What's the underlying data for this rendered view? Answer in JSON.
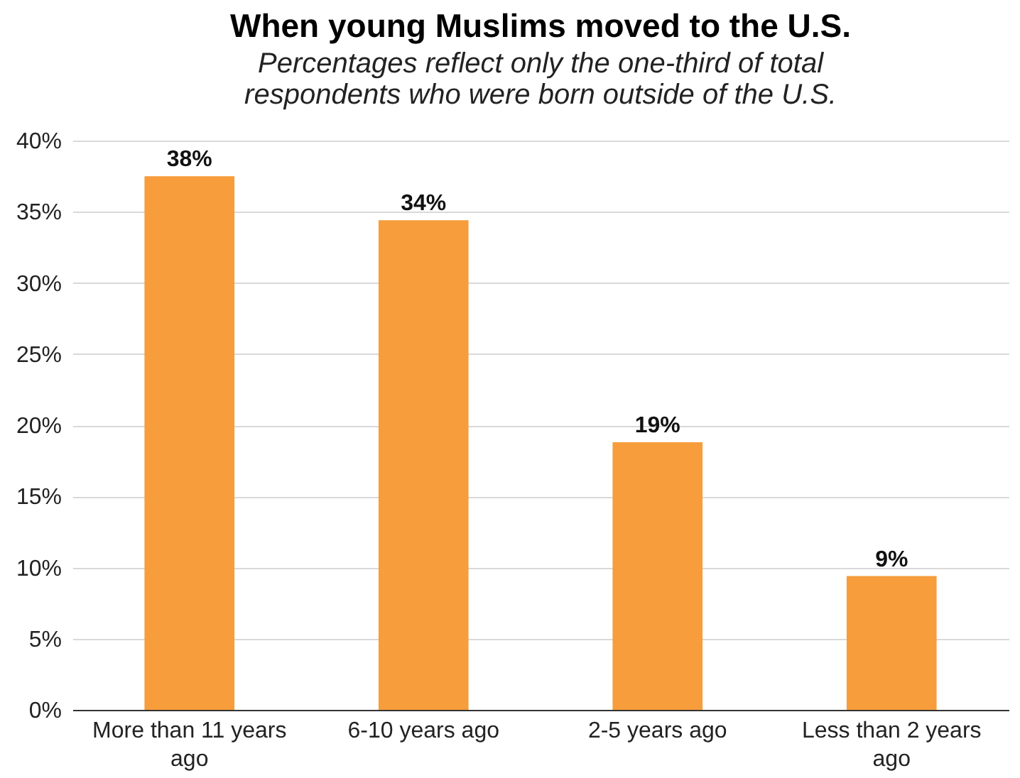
{
  "chart_data": {
    "type": "bar",
    "title": "When young Muslims moved to the U.S.",
    "subtitle": "Percentages reflect only the one-third of total respondents who were born outside of the U.S.",
    "categories": [
      "More than 11 years ago",
      "6-10 years ago",
      "2-5 years ago",
      "Less than 2 years ago"
    ],
    "values": [
      37.5,
      34.4,
      18.8,
      9.4
    ],
    "value_labels": [
      "38%",
      "34%",
      "19%",
      "9%"
    ],
    "color": "#f79d3b",
    "ylim": [
      0,
      40
    ],
    "yticks": [
      {
        "value": 0,
        "label": "0%"
      },
      {
        "value": 5,
        "label": "5%"
      },
      {
        "value": 10,
        "label": "10%"
      },
      {
        "value": 15,
        "label": "15%"
      },
      {
        "value": 20,
        "label": "20%"
      },
      {
        "value": 25,
        "label": "25%"
      },
      {
        "value": 30,
        "label": "30%"
      },
      {
        "value": 35,
        "label": "35%"
      },
      {
        "value": 40,
        "label": "40%"
      }
    ],
    "grid": "y"
  }
}
